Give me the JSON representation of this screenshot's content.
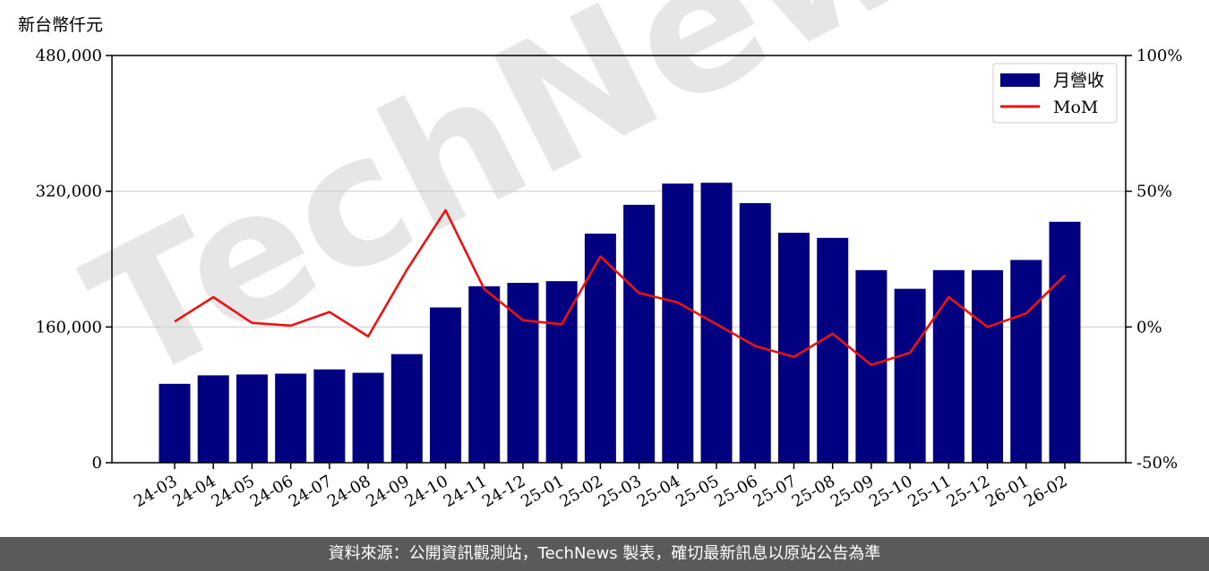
{
  "chart_data": {
    "type": "bar",
    "categories": [
      "24-03",
      "24-04",
      "24-05",
      "24-06",
      "24-07",
      "24-08",
      "24-09",
      "24-10",
      "24-11",
      "24-12",
      "25-01",
      "25-02",
      "25-03",
      "25-04",
      "25-05",
      "25-06",
      "25-07",
      "25-08",
      "25-09",
      "25-10",
      "25-11",
      "25-12",
      "26-01",
      "26-02"
    ],
    "series": [
      {
        "name": "月營收",
        "type": "bar",
        "axis": "left",
        "color": "#000080",
        "values": [
          93000,
          103000,
          104000,
          105000,
          110000,
          106000,
          128000,
          183000,
          208000,
          212000,
          214000,
          270000,
          304000,
          329000,
          330000,
          306000,
          271000,
          265000,
          227000,
          205000,
          227000,
          227000,
          239000,
          284000
        ]
      },
      {
        "name": "MoM",
        "type": "line",
        "axis": "right",
        "color": "#ee1111",
        "values": [
          2,
          11,
          1.5,
          0.5,
          5.5,
          -3.5,
          21,
          43,
          14,
          2.5,
          1,
          26,
          12.5,
          9,
          1,
          -7,
          -11,
          -2.5,
          -14,
          -9.5,
          11,
          0,
          5,
          19
        ]
      }
    ],
    "left_axis": {
      "label": "新台幣仟元",
      "ylim": [
        0,
        480000
      ],
      "ticks": [
        0,
        160000,
        320000,
        480000
      ],
      "tick_labels": [
        "0",
        "160,000",
        "320,000",
        "480,000"
      ]
    },
    "right_axis": {
      "ylim": [
        -50,
        100
      ],
      "ticks": [
        -50,
        0,
        50,
        100
      ],
      "tick_labels": [
        "-50%",
        "0%",
        "50%",
        "100%"
      ]
    },
    "grid": "horizontal",
    "legend_position": "top-right"
  },
  "watermark": {
    "text": "TechNews"
  },
  "footer": {
    "source_text": "資料來源：公開資訊觀測站，TechNews 製表，確切最新訊息以原站公告為準"
  }
}
